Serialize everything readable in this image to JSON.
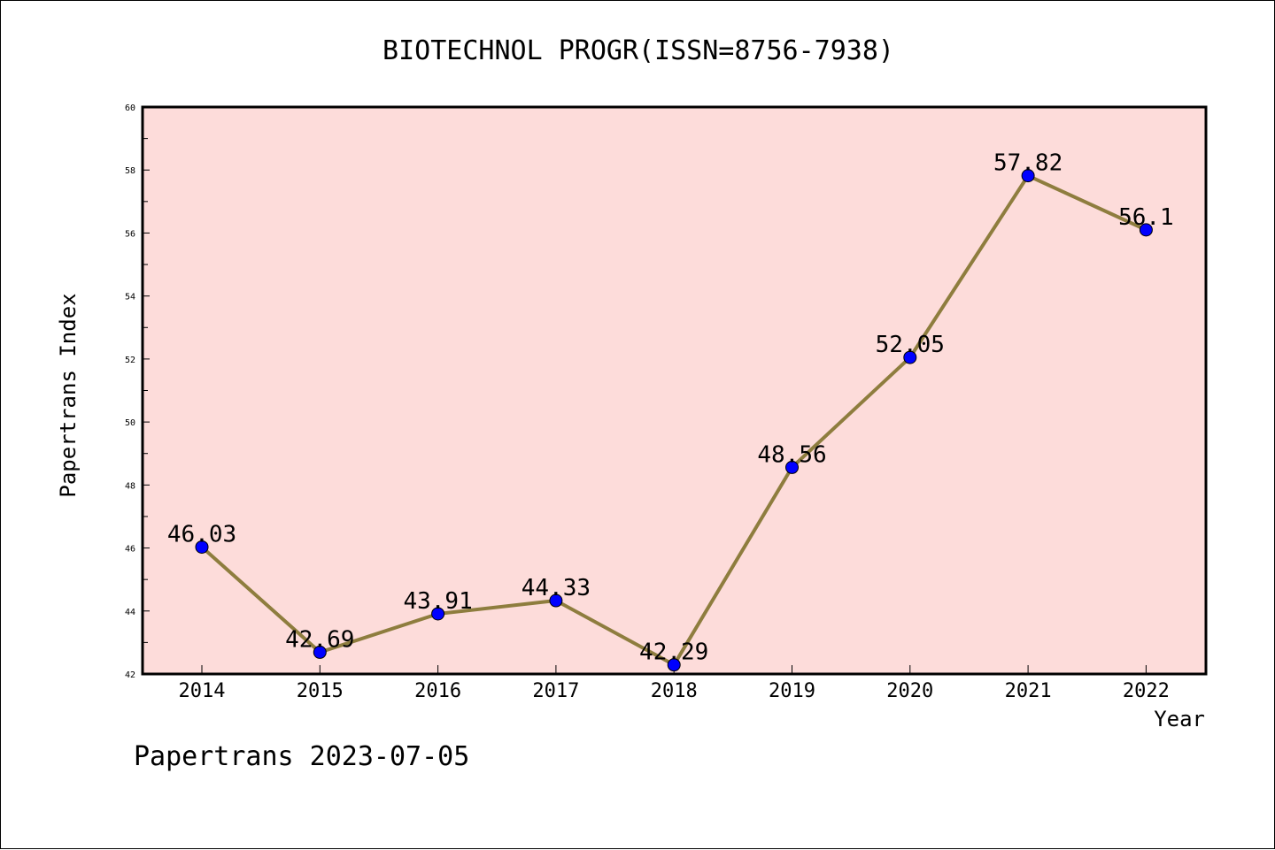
{
  "chart_data": {
    "type": "line",
    "title": "BIOTECHNOL PROGR(ISSN=8756-7938)",
    "xlabel": "Year",
    "ylabel": "Papertrans Index",
    "categories": [
      "2014",
      "2015",
      "2016",
      "2017",
      "2018",
      "2019",
      "2020",
      "2021",
      "2022"
    ],
    "series": [
      {
        "values": [
          46.03,
          42.69,
          43.91,
          44.33,
          42.29,
          48.56,
          52.05,
          57.82,
          56.1
        ],
        "labels": [
          "46.03",
          "42.69",
          "43.91",
          "44.33",
          "42.29",
          "48.56",
          "52.05",
          "57.82",
          "56.1"
        ]
      }
    ],
    "ylim": [
      42,
      60
    ],
    "yticks": [
      "42",
      "44",
      "46",
      "48",
      "50",
      "52",
      "54",
      "56",
      "58",
      "60"
    ],
    "grid": false,
    "colors": {
      "plot_background": "#FDDCDA",
      "line": "#8E7D3E",
      "marker": "#0000FF"
    }
  },
  "footer": "Papertrans 2023-07-05"
}
